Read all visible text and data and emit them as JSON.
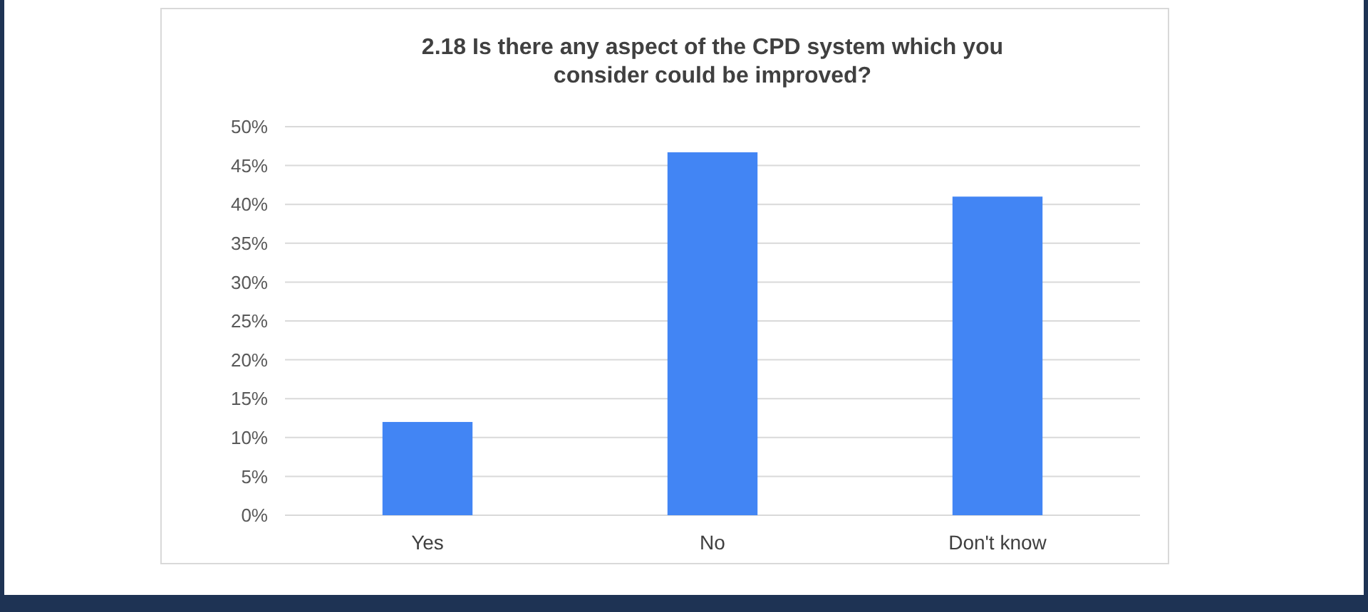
{
  "chart_data": {
    "type": "bar",
    "title": "2.18 Is there any aspect of the CPD system which you consider could be improved?",
    "categories": [
      "Yes",
      "No",
      "Don't know"
    ],
    "values": [
      12.0,
      46.7,
      41.0
    ],
    "color": "#4285f4",
    "ylim": [
      0,
      50
    ],
    "yticks": [
      {
        "value": 0,
        "label": "0%"
      },
      {
        "value": 5,
        "label": "5%"
      },
      {
        "value": 10,
        "label": "10%"
      },
      {
        "value": 15,
        "label": "15%"
      },
      {
        "value": 20,
        "label": "20%"
      },
      {
        "value": 25,
        "label": "25%"
      },
      {
        "value": 30,
        "label": "30%"
      },
      {
        "value": 35,
        "label": "35%"
      },
      {
        "value": 40,
        "label": "40%"
      },
      {
        "value": 45,
        "label": "45%"
      },
      {
        "value": 50,
        "label": "50%"
      }
    ],
    "grid": "y"
  }
}
